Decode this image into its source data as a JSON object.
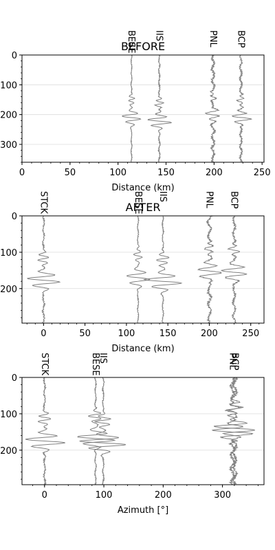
{
  "chart_data": [
    {
      "type": "line",
      "title": "BEFORE",
      "xlabel": "Distance (km)",
      "ylabel": "",
      "xlim": [
        0,
        252
      ],
      "ylim": [
        360,
        0
      ],
      "xticks": [
        0,
        50,
        100,
        150,
        200,
        250
      ],
      "yticks": [
        0,
        100,
        200,
        300
      ],
      "grid": "y",
      "trace_color": "#808080",
      "stations": [
        {
          "label": "BESE",
          "x": 114,
          "arrival": 210,
          "amp": 14,
          "noise": 1.0,
          "seed": 1
        },
        {
          "label": "IIS",
          "x": 143,
          "arrival": 222,
          "amp": 18,
          "noise": 1.5,
          "seed": 2
        },
        {
          "label": "PNL",
          "x": 199,
          "arrival": 200,
          "amp": 10,
          "noise": 3.5,
          "seed": 3
        },
        {
          "label": "BCP",
          "x": 228,
          "arrival": 210,
          "amp": 14,
          "noise": 2.5,
          "seed": 4
        }
      ]
    },
    {
      "type": "line",
      "title": "AFTER",
      "xlabel": "Distance (km)",
      "ylabel": "",
      "xlim": [
        -26,
        266
      ],
      "ylim": [
        295,
        0
      ],
      "xticks": [
        0,
        50,
        100,
        150,
        200,
        250
      ],
      "yticks": [
        0,
        100,
        200
      ],
      "grid": "y",
      "trace_color": "#808080",
      "stations": [
        {
          "label": "STCK",
          "x": 0,
          "arrival": 177,
          "amp": 25,
          "noise": 2.0,
          "seed": 5
        },
        {
          "label": "BESE",
          "x": 114,
          "arrival": 170,
          "amp": 18,
          "noise": 1.2,
          "seed": 6
        },
        {
          "label": "IIS",
          "x": 144,
          "arrival": 180,
          "amp": 28,
          "noise": 1.5,
          "seed": 7
        },
        {
          "label": "PNL",
          "x": 200,
          "arrival": 152,
          "amp": 18,
          "noise": 4.0,
          "seed": 8
        },
        {
          "label": "BCP",
          "x": 230,
          "arrival": 155,
          "amp": 20,
          "noise": 3.0,
          "seed": 9
        }
      ]
    },
    {
      "type": "line",
      "title": "",
      "xlabel": "Azimuth [°]",
      "ylabel": "",
      "xlim": [
        -38,
        370
      ],
      "ylim": [
        295,
        0
      ],
      "xticks": [
        0,
        100,
        200,
        300
      ],
      "yticks": [
        0,
        100,
        200
      ],
      "grid": "y",
      "trace_color": "#808080",
      "stations": [
        {
          "label": "STCK",
          "x": 0,
          "arrival": 175,
          "amp": 30,
          "noise": 2.0,
          "seed": 10
        },
        {
          "label": "BESE",
          "x": 86,
          "arrival": 168,
          "amp": 28,
          "noise": 1.5,
          "seed": 11
        },
        {
          "label": "IIS",
          "x": 99,
          "arrival": 180,
          "amp": 35,
          "noise": 1.5,
          "seed": 12
        },
        {
          "label": "PNL",
          "x": 317,
          "arrival": 150,
          "amp": 28,
          "noise": 4.5,
          "seed": 13
        },
        {
          "label": "BCP",
          "x": 321,
          "arrival": 140,
          "amp": 30,
          "noise": 4.0,
          "seed": 14
        }
      ]
    }
  ]
}
